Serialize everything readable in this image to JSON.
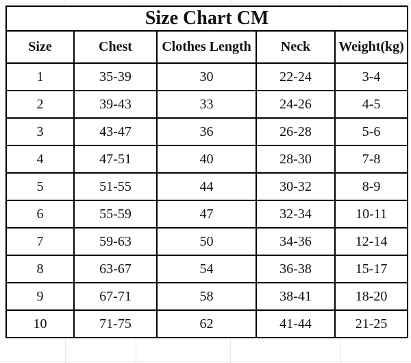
{
  "colors": {
    "table_border": "#000000",
    "text": "#111111",
    "background": "#ffffff",
    "faint_gridline": "#e8e8e8"
  },
  "chart_data": {
    "type": "table",
    "title": "Size Chart CM",
    "columns": [
      "Size",
      "Chest",
      "Clothes Length",
      "Neck",
      "Weight(kg)"
    ],
    "rows": [
      [
        "1",
        "35-39",
        "30",
        "22-24",
        "3-4"
      ],
      [
        "2",
        "39-43",
        "33",
        "24-26",
        "4-5"
      ],
      [
        "3",
        "43-47",
        "36",
        "26-28",
        "5-6"
      ],
      [
        "4",
        "47-51",
        "40",
        "28-30",
        "7-8"
      ],
      [
        "5",
        "51-55",
        "44",
        "30-32",
        "8-9"
      ],
      [
        "6",
        "55-59",
        "47",
        "32-34",
        "10-11"
      ],
      [
        "7",
        "59-63",
        "50",
        "34-36",
        "12-14"
      ],
      [
        "8",
        "63-67",
        "54",
        "36-38",
        "15-17"
      ],
      [
        "9",
        "67-71",
        "58",
        "38-41",
        "18-20"
      ],
      [
        "10",
        "71-75",
        "62",
        "41-44",
        "21-25"
      ]
    ]
  }
}
